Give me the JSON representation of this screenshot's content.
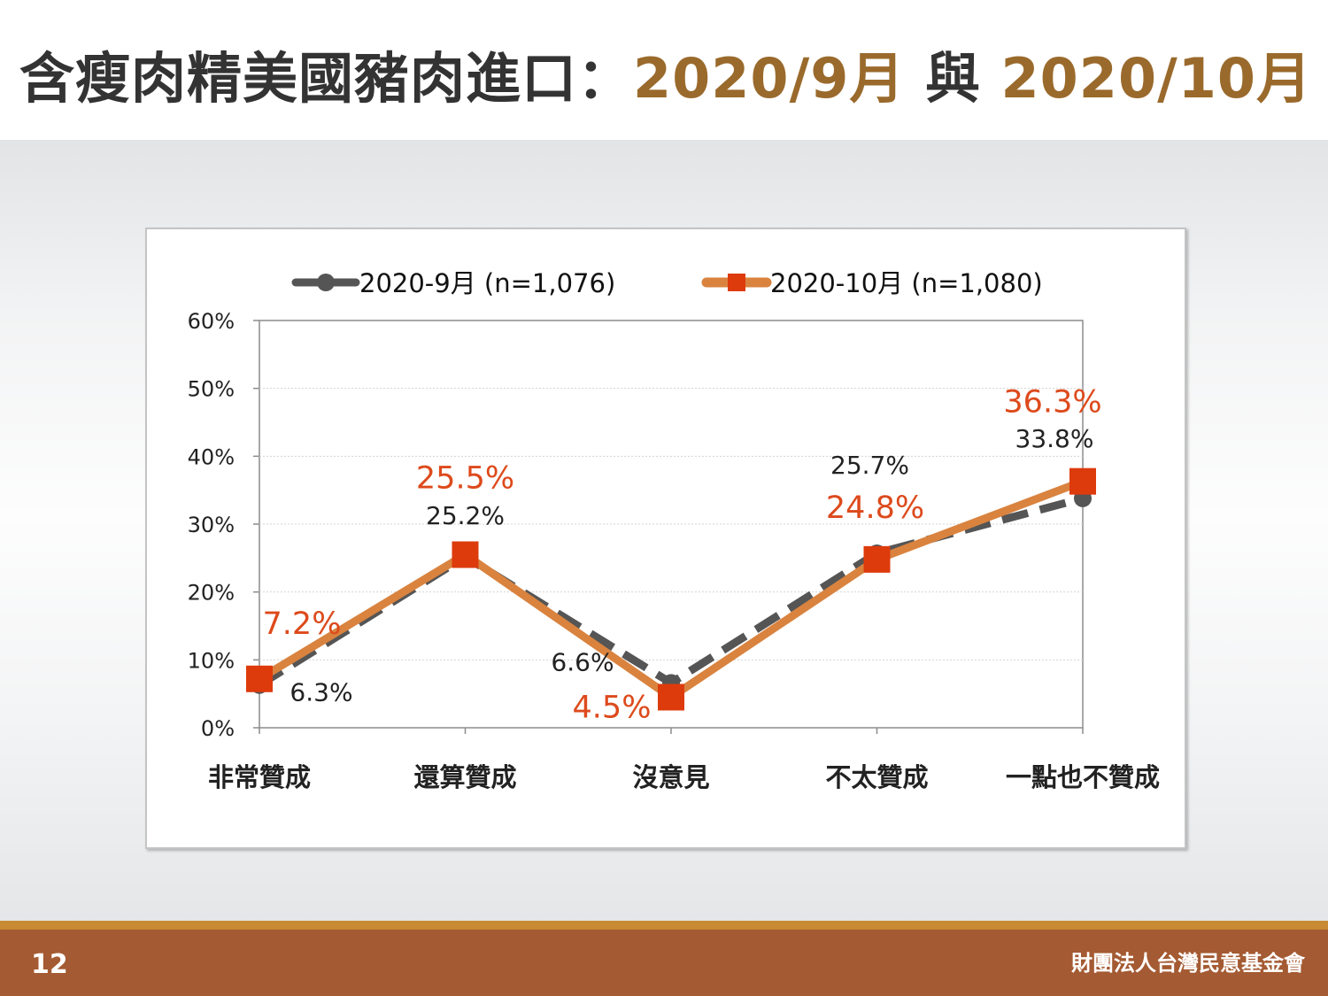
{
  "header": {
    "title_main": "含瘦肉精美國豬肉進口：",
    "title_period_1": "2020/9月",
    "title_connector": " 與 ",
    "title_period_2": "2020/10月",
    "title_color": "#333333",
    "accent_color": "#9a6a2c"
  },
  "footer": {
    "page_number": "12",
    "organization": "財團法人台灣民意基金會",
    "band_color": "#a45a32",
    "stripe_color": "#c88a33"
  },
  "chart_data": {
    "type": "line",
    "categories": [
      "非常贊成",
      "還算贊成",
      "沒意見",
      "不太贊成",
      "一點也不贊成"
    ],
    "ylim": [
      0,
      60
    ],
    "yticks": [
      0,
      10,
      20,
      30,
      40,
      50,
      60
    ],
    "ytick_labels": [
      "0%",
      "10%",
      "20%",
      "30%",
      "40%",
      "50%",
      "60%"
    ],
    "grid": true,
    "legend_position": "top",
    "series": [
      {
        "name": "2020-9月 (n=1,076)",
        "values": [
          6.3,
          25.2,
          6.6,
          25.7,
          33.8
        ],
        "labels": [
          "6.3%",
          "25.2%",
          "6.6%",
          "25.7%",
          "33.8%"
        ],
        "color": "#555555",
        "label_color": "#222222",
        "style": "dashed",
        "marker": "circle"
      },
      {
        "name": "2020-10月 (n=1,080)",
        "values": [
          7.2,
          25.5,
          4.5,
          24.8,
          36.3
        ],
        "labels": [
          "7.2%",
          "25.5%",
          "4.5%",
          "24.8%",
          "36.3%"
        ],
        "color": "#d9833f",
        "marker_color": "#dd3b0c",
        "label_color": "#dd4a1c",
        "style": "solid",
        "marker": "square"
      }
    ]
  }
}
